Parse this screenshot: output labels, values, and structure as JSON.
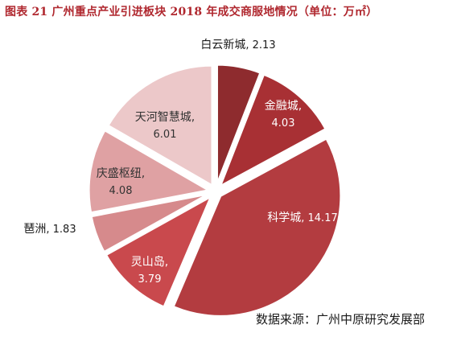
{
  "chart_data": {
    "type": "pie",
    "title": "图表  21    广州重点产业引进板块 2018 年成交商服地情况（单位：万㎡）",
    "source": "数据来源：广州中原研究发展部",
    "slices": [
      {
        "label": "白云新城",
        "value": 2.13,
        "value_text": "2.13",
        "color": "#8e2b2e"
      },
      {
        "label": "金融城",
        "value": 4.03,
        "value_text": "4.03",
        "color": "#a83034"
      },
      {
        "label": "科学城",
        "value": 14.17,
        "value_text": "14.17",
        "color": "#b33c40"
      },
      {
        "label": "灵山岛",
        "value": 3.79,
        "value_text": "3.79",
        "color": "#c9494d"
      },
      {
        "label": "琶洲",
        "value": 1.83,
        "value_text": "1.83",
        "color": "#d68a8c"
      },
      {
        "label": "庆盛枢纽",
        "value": 4.08,
        "value_text": "4.08",
        "color": "#dfa1a3"
      },
      {
        "label": "天河智慧城",
        "value": 6.01,
        "value_text": "6.01",
        "color": "#ecc8c9"
      }
    ],
    "legend": "none"
  }
}
